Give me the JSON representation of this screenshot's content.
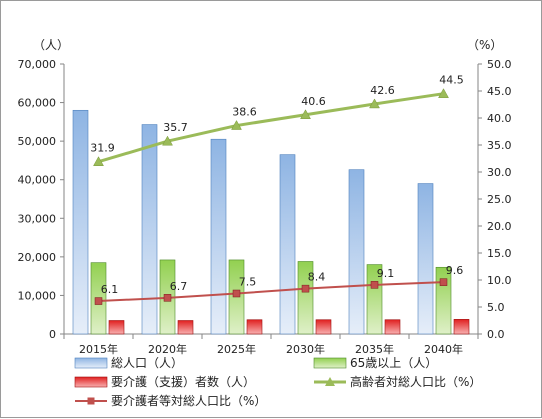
{
  "chart_data": {
    "type": "bar",
    "categories": [
      "2015年",
      "2020年",
      "2025年",
      "2030年",
      "2035年",
      "2040年"
    ],
    "y_left": {
      "unit_label": "（人）",
      "range": [
        0,
        70000
      ],
      "ticks": [
        "0",
        "10,000",
        "20,000",
        "30,000",
        "40,000",
        "50,000",
        "60,000",
        "70,000"
      ]
    },
    "y_right": {
      "unit_label": "（%）",
      "range": [
        0,
        50
      ],
      "ticks": [
        "0.0",
        "5.0",
        "10.0",
        "15.0",
        "20.0",
        "25.0",
        "30.0",
        "35.0",
        "40.0",
        "45.0",
        "50.0"
      ]
    },
    "series": [
      {
        "name": "総人口（人）",
        "type": "bar",
        "axis": "left",
        "color": "#8EB4E3",
        "values": [
          58000,
          54300,
          50500,
          46500,
          42600,
          39000
        ]
      },
      {
        "name": "65歳以上（人）",
        "type": "bar",
        "axis": "left",
        "color": "#92D050",
        "values": [
          18500,
          19200,
          19200,
          18800,
          18000,
          17300
        ]
      },
      {
        "name": "要介護（支援）者数（人）",
        "type": "bar",
        "axis": "left",
        "color": "#E02020",
        "values": [
          3500,
          3500,
          3700,
          3700,
          3700,
          3800
        ]
      },
      {
        "name": "高齢者対総人口比（%）",
        "type": "line",
        "axis": "right",
        "color": "#9BBB59",
        "marker": "triangle",
        "values": [
          31.9,
          35.7,
          38.6,
          40.6,
          42.6,
          44.5
        ],
        "labels": [
          "31.9",
          "35.7",
          "38.6",
          "40.6",
          "42.6",
          "44.5"
        ]
      },
      {
        "name": "要介護者等対総人口比（%）",
        "type": "line",
        "axis": "right",
        "color": "#C0504D",
        "marker": "square",
        "values": [
          6.1,
          6.7,
          7.5,
          8.4,
          9.1,
          9.6
        ],
        "labels": [
          "6.1",
          "6.7",
          "7.5",
          "8.4",
          "9.1",
          "9.6"
        ]
      }
    ],
    "grid": false,
    "legend_position": "bottom"
  }
}
